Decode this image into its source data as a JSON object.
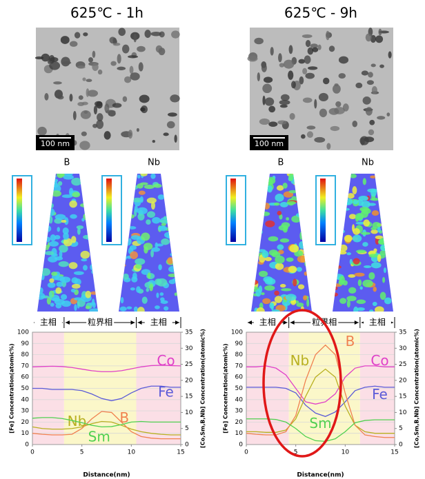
{
  "panels": [
    {
      "title": "625℃ - 1h",
      "scale_bar": "100 nm",
      "map_labels": [
        "B",
        "Nb"
      ]
    },
    {
      "title": "625℃ - 9h",
      "scale_bar": "100 nm",
      "map_labels": [
        "B",
        "Nb"
      ]
    }
  ],
  "chart_data": [
    {
      "type": "line",
      "xlabel": "Distance(nm)",
      "ylabel": "[Fe] Concentration(atomic%)",
      "y2label": "[Co,Sm,B,Nb] Concentration(atomic%)",
      "x": [
        0,
        1,
        2,
        3,
        4,
        5,
        6,
        7,
        8,
        9,
        10,
        11,
        12,
        13,
        14,
        15
      ],
      "xlim": [
        0,
        15
      ],
      "xticks": [
        0,
        5,
        10,
        15
      ],
      "ylim": [
        0,
        100
      ],
      "yticks": [
        0,
        10,
        20,
        30,
        40,
        50,
        60,
        70,
        80,
        90,
        100
      ],
      "y2lim": [
        0,
        35
      ],
      "y2ticks": [
        0,
        5,
        10,
        15,
        20,
        25,
        30,
        35
      ],
      "grid": true,
      "regions": [
        {
          "label": "主相",
          "xlim": [
            0,
            3.2
          ],
          "color": "#fbdfe6"
        },
        {
          "label": "粒界相",
          "xlim": [
            3.2,
            10.5
          ],
          "color": "#fbf7c9"
        },
        {
          "label": "主相",
          "xlim": [
            10.5,
            15
          ],
          "color": "#fbdfe6"
        }
      ],
      "series": [
        {
          "name": "Co",
          "color": "#e040c8",
          "axis": "y2",
          "values": [
            24.2,
            24.3,
            24.4,
            24.3,
            24,
            23.5,
            23,
            22.7,
            22.7,
            23,
            23.6,
            24.2,
            24.6,
            24.7,
            24.6,
            24.5
          ]
        },
        {
          "name": "Fe",
          "color": "#5a5ad8",
          "values": [
            50,
            50,
            49,
            49,
            49,
            48,
            45,
            41,
            39,
            41,
            46,
            50,
            52,
            52,
            51,
            51
          ]
        },
        {
          "name": "Nb",
          "color": "#b8b020",
          "axis": "y2",
          "values": [
            5.5,
            5,
            4.8,
            4.8,
            5,
            5.5,
            6.5,
            7.2,
            7,
            6,
            4.8,
            4,
            3.5,
            3.2,
            3,
            3
          ]
        },
        {
          "name": "B",
          "color": "#f08050",
          "axis": "y2",
          "values": [
            3.5,
            3.2,
            3,
            3,
            3.2,
            5,
            8,
            10.3,
            10,
            7,
            4,
            2.5,
            2,
            1.8,
            1.8,
            1.8
          ]
        },
        {
          "name": "Sm",
          "color": "#50d050",
          "axis": "y2",
          "values": [
            8.2,
            8.4,
            8.4,
            8.1,
            7.5,
            6.8,
            6,
            5.5,
            5.6,
            6.2,
            7,
            7.2,
            7,
            7,
            7,
            7
          ]
        }
      ]
    },
    {
      "type": "line",
      "xlabel": "Distance(nm)",
      "ylabel": "[Fe] Concentration(atomic%)",
      "y2label": "[Co,Sm,B,Nb] Concentration(atomic%)",
      "x": [
        0,
        1,
        2,
        3,
        4,
        5,
        6,
        7,
        8,
        9,
        10,
        11,
        12,
        13,
        14,
        15
      ],
      "xlim": [
        0,
        15
      ],
      "xticks": [
        0,
        5,
        10,
        15
      ],
      "ylim": [
        0,
        100
      ],
      "yticks": [
        0,
        10,
        20,
        30,
        40,
        50,
        60,
        70,
        80,
        90,
        100
      ],
      "y2lim": [
        0,
        35
      ],
      "y2ticks": [
        0,
        5,
        10,
        15,
        20,
        25,
        30,
        35
      ],
      "grid": true,
      "regions": [
        {
          "label": "主相",
          "xlim": [
            0,
            4.3
          ],
          "color": "#fbdfe6"
        },
        {
          "label": "粒界相",
          "xlim": [
            4.3,
            11.5
          ],
          "color": "#fbf7c9"
        },
        {
          "label": "主相",
          "xlim": [
            11.5,
            15
          ],
          "color": "#fbdfe6"
        }
      ],
      "series": [
        {
          "name": "Co",
          "color": "#e040c8",
          "axis": "y2",
          "values": [
            24.2,
            24.2,
            24.5,
            23.8,
            21.7,
            17.5,
            13.3,
            12.6,
            13.3,
            15.8,
            21,
            23.8,
            24.5,
            24.5,
            24.2,
            24.2
          ]
        },
        {
          "name": "Fe",
          "color": "#5a5ad8",
          "values": [
            51,
            51,
            51,
            51,
            50,
            46,
            35,
            28,
            25,
            29,
            38,
            48,
            51,
            52,
            51,
            51
          ]
        },
        {
          "name": "Nb",
          "color": "#b8b020",
          "axis": "y2",
          "values": [
            4,
            4,
            3.8,
            3.8,
            4.5,
            8,
            15,
            21,
            23.5,
            21,
            12,
            6,
            4,
            3.5,
            3.5,
            3.5
          ]
        },
        {
          "name": "B",
          "color": "#f08050",
          "axis": "y2",
          "values": [
            3.5,
            3.2,
            3,
            3,
            4,
            9,
            20,
            28,
            31,
            28,
            16,
            6,
            3,
            2.5,
            2.2,
            2.2
          ]
        },
        {
          "name": "Sm",
          "color": "#50d050",
          "axis": "y2",
          "values": [
            8,
            8,
            8,
            7.8,
            7,
            5,
            2.5,
            1.2,
            1,
            1.8,
            4,
            6.8,
            7.5,
            7.7,
            7.7,
            7.7
          ]
        }
      ]
    }
  ]
}
